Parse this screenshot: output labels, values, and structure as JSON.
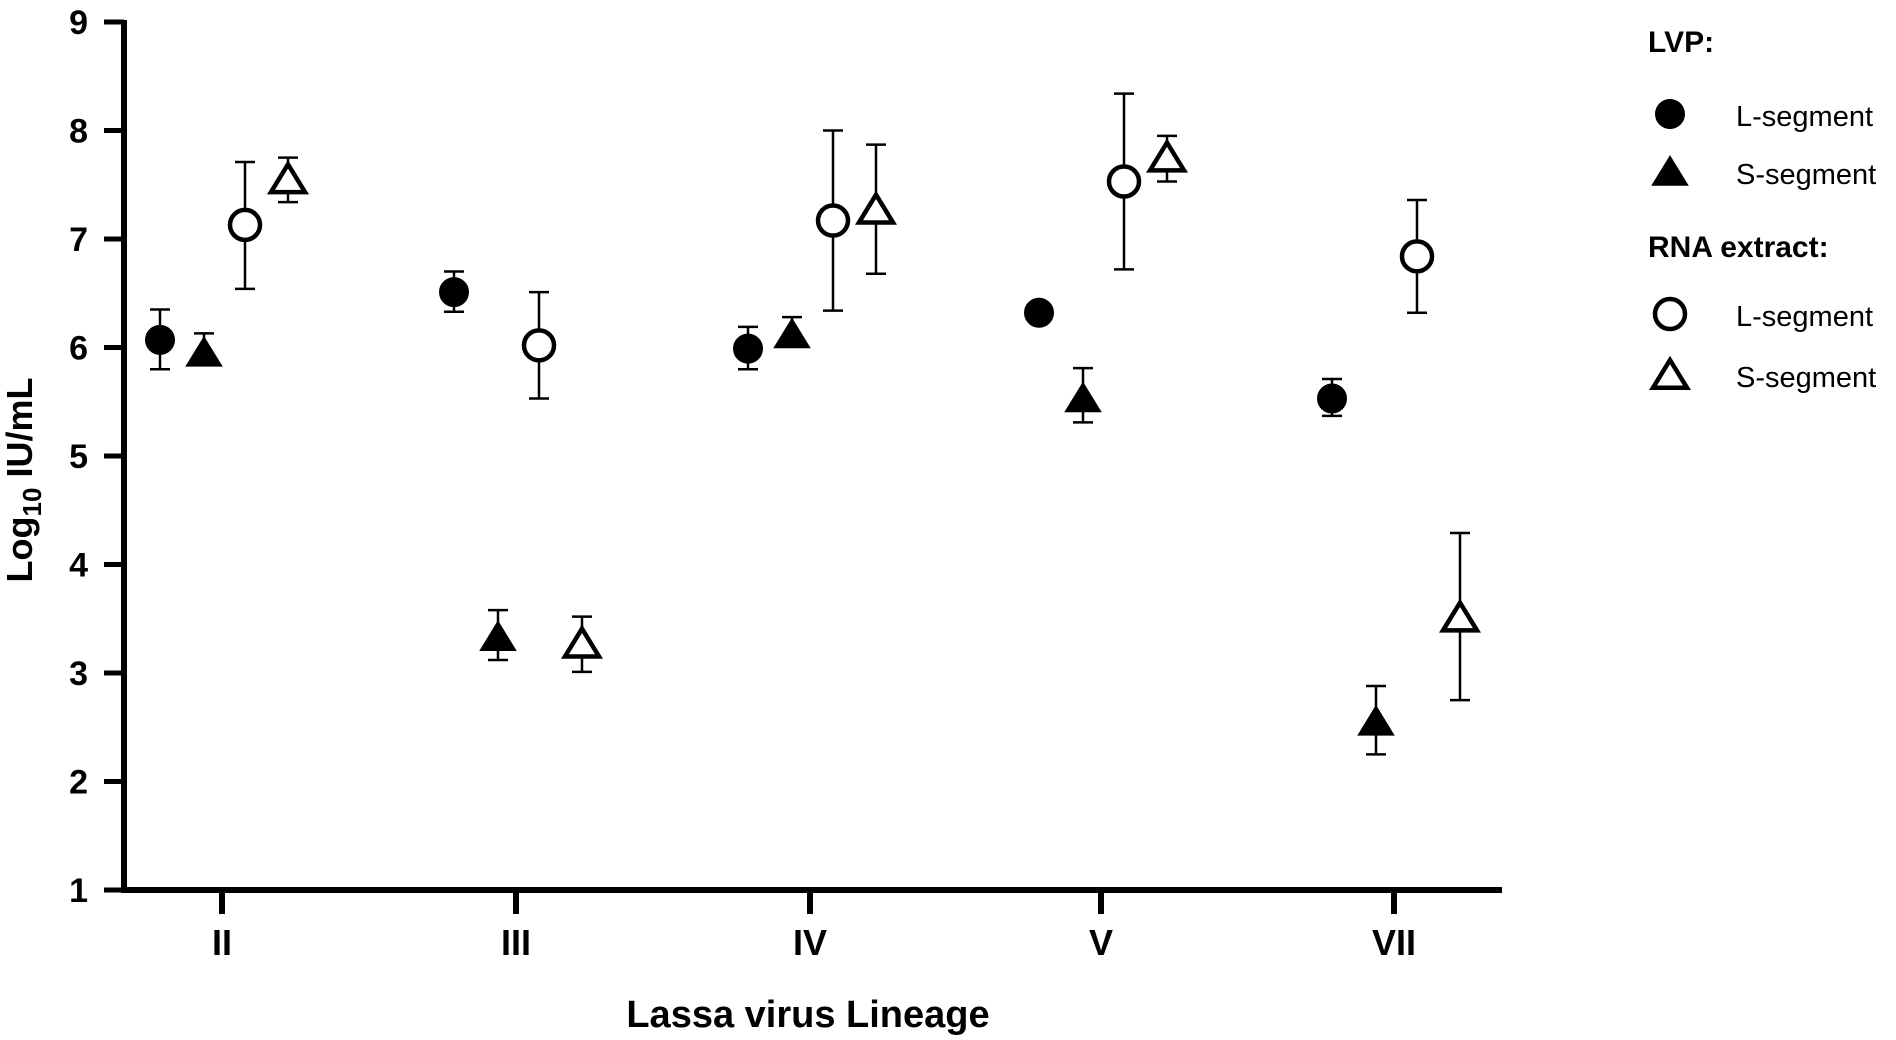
{
  "chart_data": {
    "type": "scatter",
    "xlabel": "Lassa virus Lineage",
    "ylabel_main": "Log",
    "ylabel_sub": "10",
    "ylabel_rest": " IU/mL",
    "categories": [
      "II",
      "III",
      "IV",
      "V",
      "VII"
    ],
    "ylim": [
      1,
      9
    ],
    "yticks": [
      1,
      2,
      3,
      4,
      5,
      6,
      7,
      8,
      9
    ],
    "grid": false,
    "legend_position": "right",
    "legend_groups": [
      {
        "title": "LVP:",
        "entries": [
          0,
          1
        ]
      },
      {
        "title": "RNA extract:",
        "entries": [
          2,
          3
        ]
      }
    ],
    "series": [
      {
        "name": "L-segment",
        "group": "LVP",
        "marker": "circle",
        "filled": true,
        "values": [
          6.07,
          6.51,
          5.99,
          6.32,
          5.53
        ],
        "error": [
          [
            5.8,
            6.35
          ],
          [
            6.33,
            6.7
          ],
          [
            5.8,
            6.19
          ],
          [
            null,
            null
          ],
          [
            5.37,
            5.71
          ]
        ]
      },
      {
        "name": "S-segment",
        "group": "LVP",
        "marker": "triangle",
        "filled": true,
        "values": [
          5.95,
          3.33,
          6.12,
          5.53,
          2.55
        ],
        "error": [
          [
            5.87,
            6.13
          ],
          [
            3.12,
            3.58
          ],
          [
            6.02,
            6.28
          ],
          [
            5.31,
            5.81
          ],
          [
            2.25,
            2.88
          ]
        ]
      },
      {
        "name": "L-segment",
        "group": "RNA extract",
        "marker": "circle",
        "filled": false,
        "values": [
          7.13,
          6.02,
          7.17,
          7.53,
          6.84
        ],
        "error": [
          [
            6.54,
            7.71
          ],
          [
            5.53,
            6.51
          ],
          [
            6.34,
            8.0
          ],
          [
            6.72,
            8.34
          ],
          [
            6.32,
            7.36
          ]
        ]
      },
      {
        "name": "S-segment",
        "group": "RNA extract",
        "marker": "triangle",
        "filled": false,
        "values": [
          7.55,
          3.27,
          7.27,
          7.75,
          3.51
        ],
        "error": [
          [
            7.34,
            7.75
          ],
          [
            3.01,
            3.52
          ],
          [
            6.68,
            7.87
          ],
          [
            7.53,
            7.95
          ],
          [
            2.75,
            4.29
          ]
        ]
      }
    ]
  }
}
